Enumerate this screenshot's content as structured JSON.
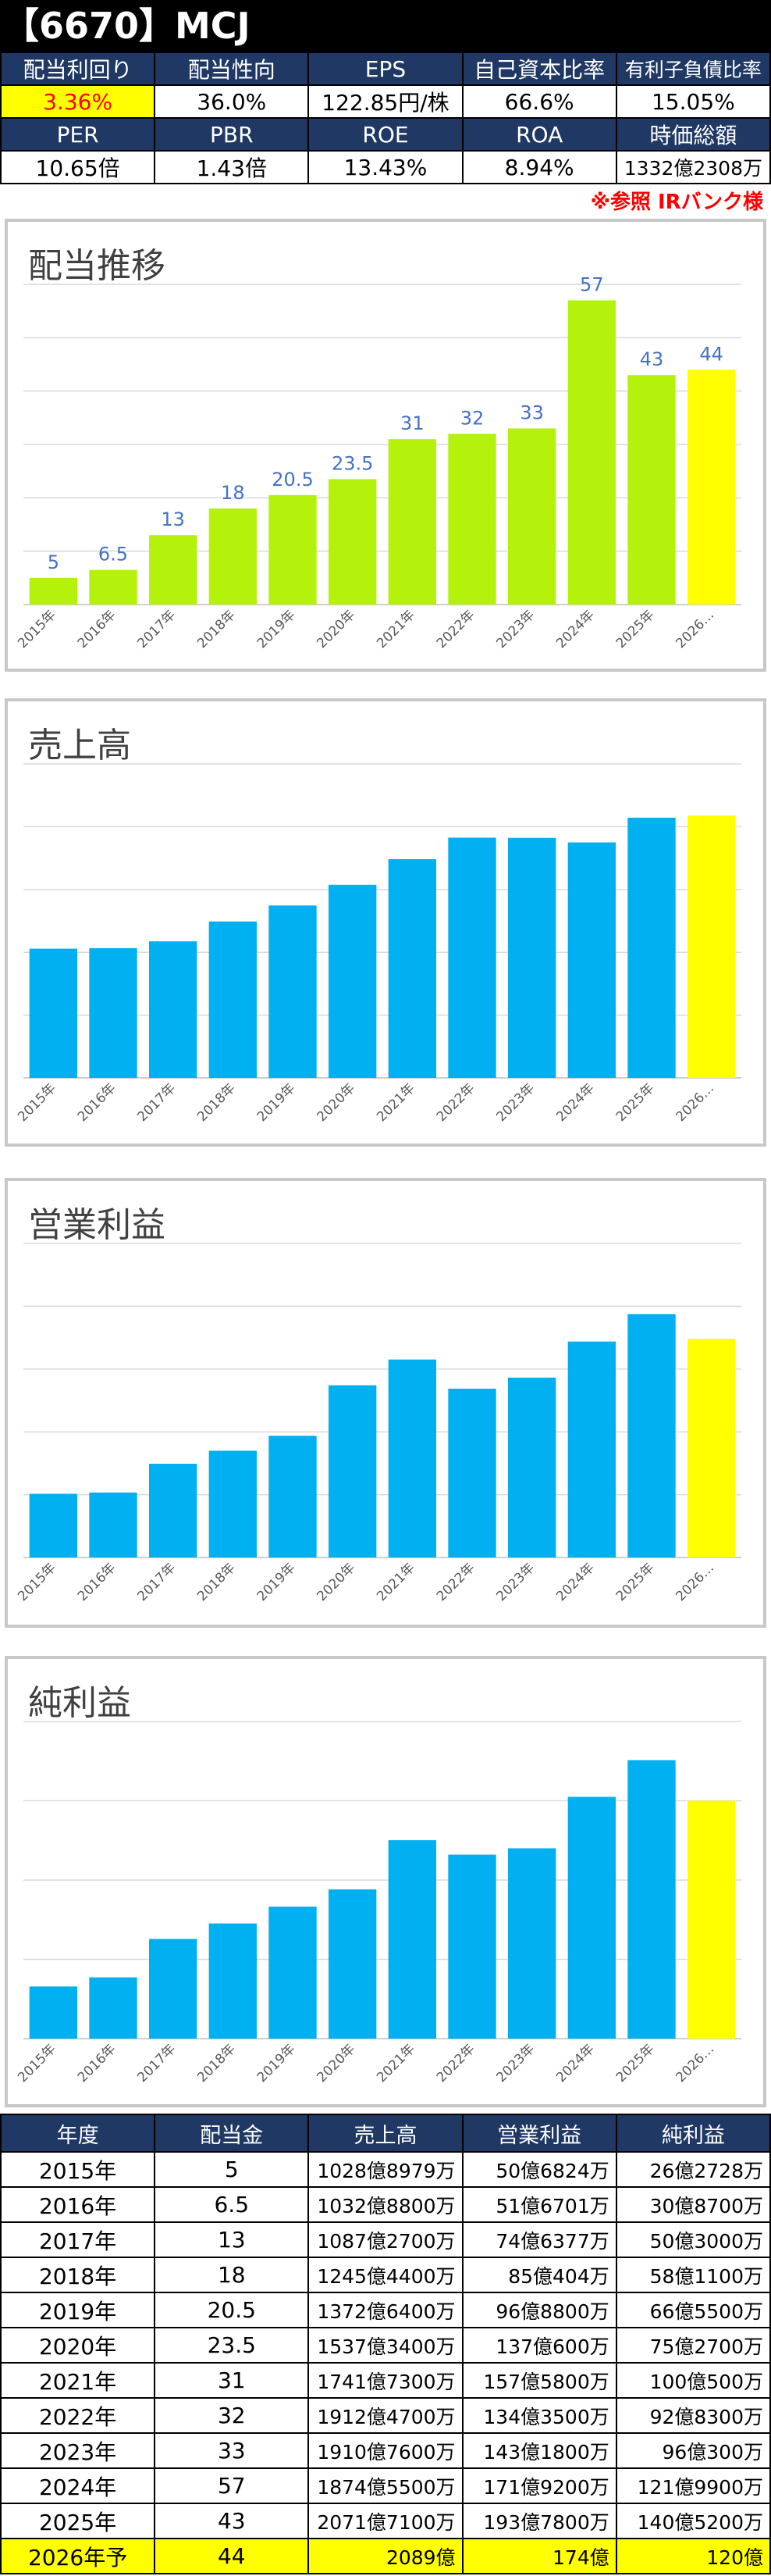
{
  "header": {
    "title": "【6670】MCJ"
  },
  "metrics": {
    "row1_labels": [
      "配当利回り",
      "配当性向",
      "EPS",
      "自己資本比率",
      "有利子負債比率"
    ],
    "row1_values": [
      "3.36%",
      "36.0%",
      "122.85円/株",
      "66.6%",
      "15.05%"
    ],
    "row2_labels": [
      "PER",
      "PBR",
      "ROE",
      "ROA",
      "時価総額"
    ],
    "row2_values": [
      "10.65倍",
      "1.43倍",
      "13.43%",
      "8.94%",
      "1332億2308万"
    ]
  },
  "note": "※参照 IRバンク様",
  "colors": {
    "dividend_bar": "#b4f20c",
    "sales_bar": "#00b0f0",
    "forecast_bar": "#ffff00",
    "header_bg": "#1f3864",
    "label": "#4472c4"
  },
  "chart_data": [
    {
      "type": "bar",
      "title": "配当推移",
      "categories": [
        "2015年",
        "2016年",
        "2017年",
        "2018年",
        "2019年",
        "2020年",
        "2021年",
        "2022年",
        "2023年",
        "2024年",
        "2025年",
        "2026…"
      ],
      "values": [
        5,
        6.5,
        13,
        18,
        20.5,
        23.5,
        31,
        32,
        33,
        57,
        43,
        44
      ],
      "data_labels": [
        "5",
        "6.5",
        "13",
        "18",
        "20.5",
        "23.5",
        "31",
        "32",
        "33",
        "57",
        "43",
        "44"
      ],
      "ylim": [
        0,
        60
      ],
      "grid": true
    },
    {
      "type": "bar",
      "title": "売上高",
      "categories": [
        "2015年",
        "2016年",
        "2017年",
        "2018年",
        "2019年",
        "2020年",
        "2021年",
        "2022年",
        "2023年",
        "2024年",
        "2025年",
        "2026…"
      ],
      "values": [
        1028.9,
        1032.9,
        1087.3,
        1245.4,
        1372.6,
        1537.3,
        1741.7,
        1912.5,
        1910.8,
        1874.6,
        2071.7,
        2089
      ],
      "ylim": [
        0,
        2500
      ],
      "grid": true
    },
    {
      "type": "bar",
      "title": "営業利益",
      "categories": [
        "2015年",
        "2016年",
        "2017年",
        "2018年",
        "2019年",
        "2020年",
        "2021年",
        "2022年",
        "2023年",
        "2024年",
        "2025年",
        "2026…"
      ],
      "values": [
        50.7,
        51.7,
        74.6,
        85.0,
        96.9,
        137.1,
        157.6,
        134.4,
        143.2,
        171.9,
        193.8,
        174
      ],
      "ylim": [
        0,
        250
      ],
      "grid": true
    },
    {
      "type": "bar",
      "title": "純利益",
      "categories": [
        "2015年",
        "2016年",
        "2017年",
        "2018年",
        "2019年",
        "2020年",
        "2021年",
        "2022年",
        "2023年",
        "2024年",
        "2025年",
        "2026…"
      ],
      "values": [
        26.3,
        30.9,
        50.3,
        58.1,
        66.6,
        75.3,
        100.1,
        92.8,
        96.0,
        121.99,
        140.5,
        120
      ],
      "ylim": [
        0,
        160
      ],
      "grid": true
    }
  ],
  "table": {
    "headers": [
      "年度",
      "配当金",
      "売上高",
      "営業利益",
      "純利益"
    ],
    "rows": [
      [
        "2015年",
        "5",
        "1028億8979万",
        "50億6824万",
        "26億2728万"
      ],
      [
        "2016年",
        "6.5",
        "1032億8800万",
        "51億6701万",
        "30億8700万"
      ],
      [
        "2017年",
        "13",
        "1087億2700万",
        "74億6377万",
        "50億3000万"
      ],
      [
        "2018年",
        "18",
        "1245億4400万",
        "85億404万",
        "58億1100万"
      ],
      [
        "2019年",
        "20.5",
        "1372億6400万",
        "96億8800万",
        "66億5500万"
      ],
      [
        "2020年",
        "23.5",
        "1537億3400万",
        "137億600万",
        "75億2700万"
      ],
      [
        "2021年",
        "31",
        "1741億7300万",
        "157億5800万",
        "100億500万"
      ],
      [
        "2022年",
        "32",
        "1912億4700万",
        "134億3500万",
        "92億8300万"
      ],
      [
        "2023年",
        "33",
        "1910億7600万",
        "143億1800万",
        "96億300万"
      ],
      [
        "2024年",
        "57",
        "1874億5500万",
        "171億9200万",
        "121億9900万"
      ],
      [
        "2025年",
        "43",
        "2071億7100万",
        "193億7800万",
        "140億5200万"
      ],
      [
        "2026年予",
        "44",
        "2089億",
        "174億",
        "120億"
      ]
    ]
  }
}
